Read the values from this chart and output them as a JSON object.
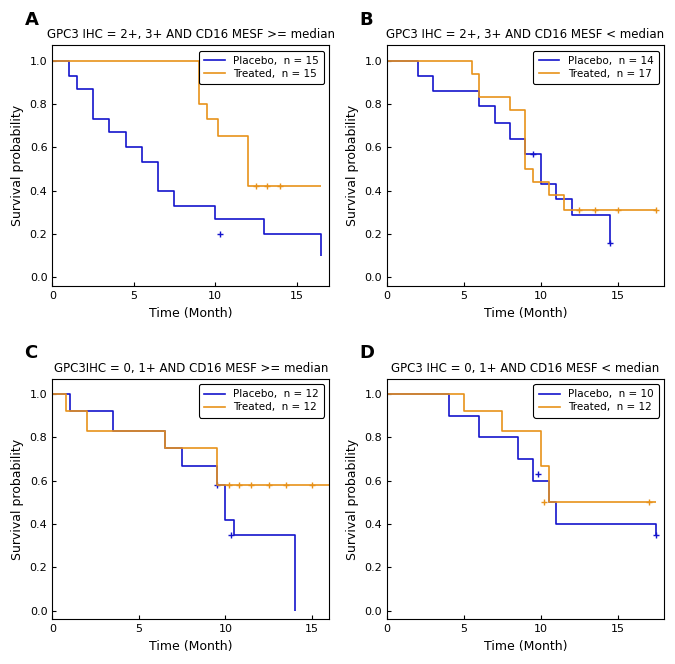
{
  "panels": [
    {
      "label": "A",
      "title": "GPC3 IHC = 2+, 3+ AND CD16 MESF >= median",
      "placebo_n": 15,
      "treated_n": 15,
      "placebo_times": [
        0,
        1.0,
        1.5,
        2.5,
        3.5,
        4.5,
        5.5,
        6.5,
        7.5,
        10.0,
        13.0,
        16.5
      ],
      "placebo_surv": [
        1.0,
        0.93,
        0.87,
        0.73,
        0.67,
        0.6,
        0.53,
        0.4,
        0.33,
        0.27,
        0.2,
        0.1
      ],
      "placebo_censor_times": [
        10.3
      ],
      "placebo_censor_surv": [
        0.2
      ],
      "treated_times": [
        0,
        6.0,
        9.0,
        9.5,
        10.2,
        11.0,
        12.0,
        13.0,
        16.5
      ],
      "treated_surv": [
        1.0,
        1.0,
        0.8,
        0.73,
        0.65,
        0.65,
        0.42,
        0.42,
        0.42
      ],
      "treated_censor_times": [
        12.5,
        13.2,
        14.0
      ],
      "treated_censor_surv": [
        0.42,
        0.42,
        0.42
      ],
      "xlim": [
        0,
        17
      ],
      "xticks": [
        0,
        5,
        10,
        15
      ]
    },
    {
      "label": "B",
      "title": "GPC3 IHC = 2+, 3+ AND CD16 MESF < median",
      "placebo_n": 14,
      "treated_n": 17,
      "placebo_times": [
        0,
        2.0,
        3.0,
        5.0,
        6.0,
        7.0,
        8.0,
        9.0,
        10.0,
        11.0,
        12.0,
        14.5
      ],
      "placebo_surv": [
        1.0,
        0.93,
        0.86,
        0.86,
        0.79,
        0.71,
        0.64,
        0.57,
        0.43,
        0.36,
        0.29,
        0.16
      ],
      "placebo_censor_times": [
        9.5,
        14.5
      ],
      "placebo_censor_surv": [
        0.57,
        0.16
      ],
      "treated_times": [
        0,
        0.3,
        2.0,
        5.5,
        6.0,
        7.0,
        8.0,
        9.0,
        9.5,
        10.0,
        10.5,
        11.5,
        12.5,
        17.5
      ],
      "treated_surv": [
        1.0,
        1.0,
        1.0,
        0.94,
        0.83,
        0.83,
        0.77,
        0.5,
        0.44,
        0.44,
        0.38,
        0.31,
        0.31,
        0.31
      ],
      "treated_censor_times": [
        12.5,
        13.5,
        15.0,
        17.5
      ],
      "treated_censor_surv": [
        0.31,
        0.31,
        0.31,
        0.31
      ],
      "xlim": [
        0,
        18
      ],
      "xticks": [
        0,
        5,
        10,
        15
      ]
    },
    {
      "label": "C",
      "title": "GPC3IHC = 0, 1+ AND CD16 MESF >= median",
      "placebo_n": 12,
      "treated_n": 12,
      "placebo_times": [
        0,
        1.0,
        2.5,
        3.5,
        5.0,
        6.5,
        7.5,
        9.5,
        10.0,
        10.5,
        13.5,
        14.0
      ],
      "placebo_surv": [
        1.0,
        0.92,
        0.92,
        0.83,
        0.83,
        0.75,
        0.67,
        0.58,
        0.42,
        0.35,
        0.35,
        0.0
      ],
      "placebo_censor_times": [
        9.5,
        10.3
      ],
      "placebo_censor_surv": [
        0.58,
        0.35
      ],
      "treated_times": [
        0,
        0.8,
        2.0,
        5.0,
        6.5,
        8.0,
        9.5,
        10.0,
        16.0
      ],
      "treated_surv": [
        1.0,
        0.92,
        0.83,
        0.83,
        0.75,
        0.75,
        0.58,
        0.58,
        0.58
      ],
      "treated_censor_times": [
        10.2,
        10.8,
        11.5,
        12.5,
        13.5,
        15.0
      ],
      "treated_censor_surv": [
        0.58,
        0.58,
        0.58,
        0.58,
        0.58,
        0.58
      ],
      "xlim": [
        0,
        16
      ],
      "xticks": [
        0,
        5,
        10,
        15
      ]
    },
    {
      "label": "D",
      "title": "GPC3 IHC = 0, 1+ AND CD16 MESF < median",
      "placebo_n": 10,
      "treated_n": 12,
      "placebo_times": [
        0,
        4.0,
        6.0,
        8.5,
        9.5,
        10.5,
        11.0,
        17.5
      ],
      "placebo_surv": [
        1.0,
        0.9,
        0.8,
        0.7,
        0.6,
        0.5,
        0.4,
        0.35
      ],
      "placebo_censor_times": [
        9.8,
        17.5
      ],
      "placebo_censor_surv": [
        0.63,
        0.35
      ],
      "treated_times": [
        0,
        4.0,
        5.0,
        7.5,
        10.0,
        10.5,
        12.5,
        17.5
      ],
      "treated_surv": [
        1.0,
        1.0,
        0.92,
        0.83,
        0.67,
        0.5,
        0.5,
        0.5
      ],
      "treated_censor_times": [
        10.2,
        17.0
      ],
      "treated_censor_surv": [
        0.5,
        0.5
      ],
      "xlim": [
        0,
        18
      ],
      "xticks": [
        0,
        5,
        10,
        15
      ]
    }
  ],
  "placebo_color": "#1414CC",
  "treated_color": "#E8921A",
  "ylabel": "Survival probability",
  "xlabel": "Time (Month)",
  "ytick_labels": [
    "0.0",
    "0.2",
    "0.4",
    "0.6",
    "0.8",
    "1.0"
  ],
  "ytick_vals": [
    0.0,
    0.2,
    0.4,
    0.6,
    0.8,
    1.0
  ],
  "ylim": [
    0.0,
    1.05
  ]
}
